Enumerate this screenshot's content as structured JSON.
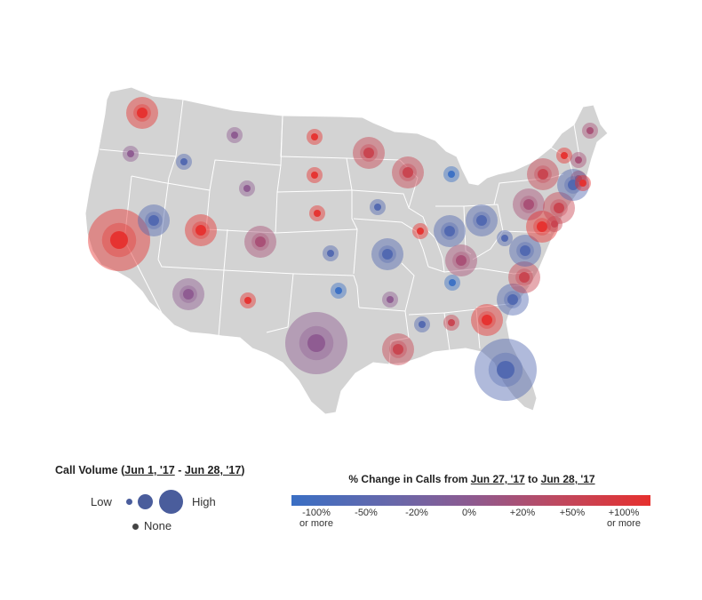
{
  "legend_volume": {
    "title_prefix": "Call Volume (",
    "date_start": "Jun 1, '17",
    "separator": " - ",
    "date_end": "Jun 28, '17",
    "title_suffix": ")",
    "low_label": "Low",
    "high_label": "High",
    "none_label": "None"
  },
  "legend_change": {
    "title_prefix": "% Change in Calls from ",
    "date_from": "Jun 27, '17",
    "mid": " to ",
    "date_to": "Jun 28, '17",
    "ticks": [
      {
        "line1": "-100%",
        "line2": "or more"
      },
      {
        "line1": "-50%",
        "line2": ""
      },
      {
        "line1": "-20%",
        "line2": ""
      },
      {
        "line1": "0%",
        "line2": ""
      },
      {
        "line1": "+20%",
        "line2": ""
      },
      {
        "line1": "+50%",
        "line2": ""
      },
      {
        "line1": "+100%",
        "line2": "or more"
      }
    ]
  },
  "colors": {
    "land": "#d3d3d3",
    "border": "#ffffff",
    "neg_strong": "#3a6fc4",
    "neutral": "#8d5a90",
    "pos_strong": "#e6302e"
  },
  "states": [
    {
      "state": "Washington",
      "volume": "medium",
      "change": "+100% or more"
    },
    {
      "state": "Oregon",
      "volume": "low",
      "change": "0%"
    },
    {
      "state": "Idaho",
      "volume": "low",
      "change": "-50%"
    },
    {
      "state": "Montana",
      "volume": "low",
      "change": "0%"
    },
    {
      "state": "Wyoming",
      "volume": "low",
      "change": "0%"
    },
    {
      "state": "California",
      "volume": "high",
      "change": "+100% or more"
    },
    {
      "state": "Nevada",
      "volume": "medium",
      "change": "-50%"
    },
    {
      "state": "Utah",
      "volume": "medium",
      "change": "+100% or more"
    },
    {
      "state": "Colorado",
      "volume": "medium",
      "change": "+20%"
    },
    {
      "state": "Arizona",
      "volume": "medium",
      "change": "0%"
    },
    {
      "state": "New Mexico",
      "volume": "low",
      "change": "+100% or more"
    },
    {
      "state": "North Dakota",
      "volume": "low",
      "change": "+100% or more"
    },
    {
      "state": "South Dakota",
      "volume": "low",
      "change": "+100% or more"
    },
    {
      "state": "Nebraska",
      "volume": "low",
      "change": "+100% or more"
    },
    {
      "state": "Kansas",
      "volume": "low",
      "change": "-50%"
    },
    {
      "state": "Oklahoma",
      "volume": "low",
      "change": "-100% or more"
    },
    {
      "state": "Texas",
      "volume": "high",
      "change": "0%"
    },
    {
      "state": "Minnesota",
      "volume": "medium",
      "change": "+50%"
    },
    {
      "state": "Iowa",
      "volume": "low",
      "change": "-50%"
    },
    {
      "state": "Missouri",
      "volume": "medium",
      "change": "-50%"
    },
    {
      "state": "Arkansas",
      "volume": "low",
      "change": "0%"
    },
    {
      "state": "Louisiana",
      "volume": "medium",
      "change": "+50%"
    },
    {
      "state": "Wisconsin",
      "volume": "medium",
      "change": "+50%"
    },
    {
      "state": "Illinois",
      "volume": "low",
      "change": "+100% or more"
    },
    {
      "state": "Michigan",
      "volume": "low",
      "change": "-100% or more"
    },
    {
      "state": "Indiana",
      "volume": "medium",
      "change": "-50%"
    },
    {
      "state": "Ohio",
      "volume": "medium",
      "change": "-50%"
    },
    {
      "state": "Kentucky",
      "volume": "medium",
      "change": "+20%"
    },
    {
      "state": "Tennessee",
      "volume": "low",
      "change": "-100% or more"
    },
    {
      "state": "Mississippi",
      "volume": "low",
      "change": "-50%"
    },
    {
      "state": "Alabama",
      "volume": "low",
      "change": "+50%"
    },
    {
      "state": "Georgia",
      "volume": "medium",
      "change": "+100% or more"
    },
    {
      "state": "Florida",
      "volume": "high",
      "change": "-50%"
    },
    {
      "state": "South Carolina",
      "volume": "medium",
      "change": "-50%"
    },
    {
      "state": "North Carolina",
      "volume": "medium",
      "change": "+50%"
    },
    {
      "state": "Virginia",
      "volume": "medium",
      "change": "-50%"
    },
    {
      "state": "West Virginia",
      "volume": "low",
      "change": "-50%"
    },
    {
      "state": "Pennsylvania",
      "volume": "medium",
      "change": "+20%"
    },
    {
      "state": "New York",
      "volume": "medium",
      "change": "+50%"
    },
    {
      "state": "Maryland",
      "volume": "medium",
      "change": "+100% or more"
    },
    {
      "state": "New Jersey",
      "volume": "medium",
      "change": "+50%"
    },
    {
      "state": "Delaware",
      "volume": "low",
      "change": "+50%"
    },
    {
      "state": "Connecticut",
      "volume": "low",
      "change": "+50%"
    },
    {
      "state": "Massachusetts",
      "volume": "medium",
      "change": "-50%"
    },
    {
      "state": "Rhode Island",
      "volume": "low",
      "change": "+100% or more"
    },
    {
      "state": "Vermont",
      "volume": "low",
      "change": "+100% or more"
    },
    {
      "state": "New Hampshire",
      "volume": "low",
      "change": "+20%"
    },
    {
      "state": "Maine",
      "volume": "low",
      "change": "+20%"
    }
  ]
}
